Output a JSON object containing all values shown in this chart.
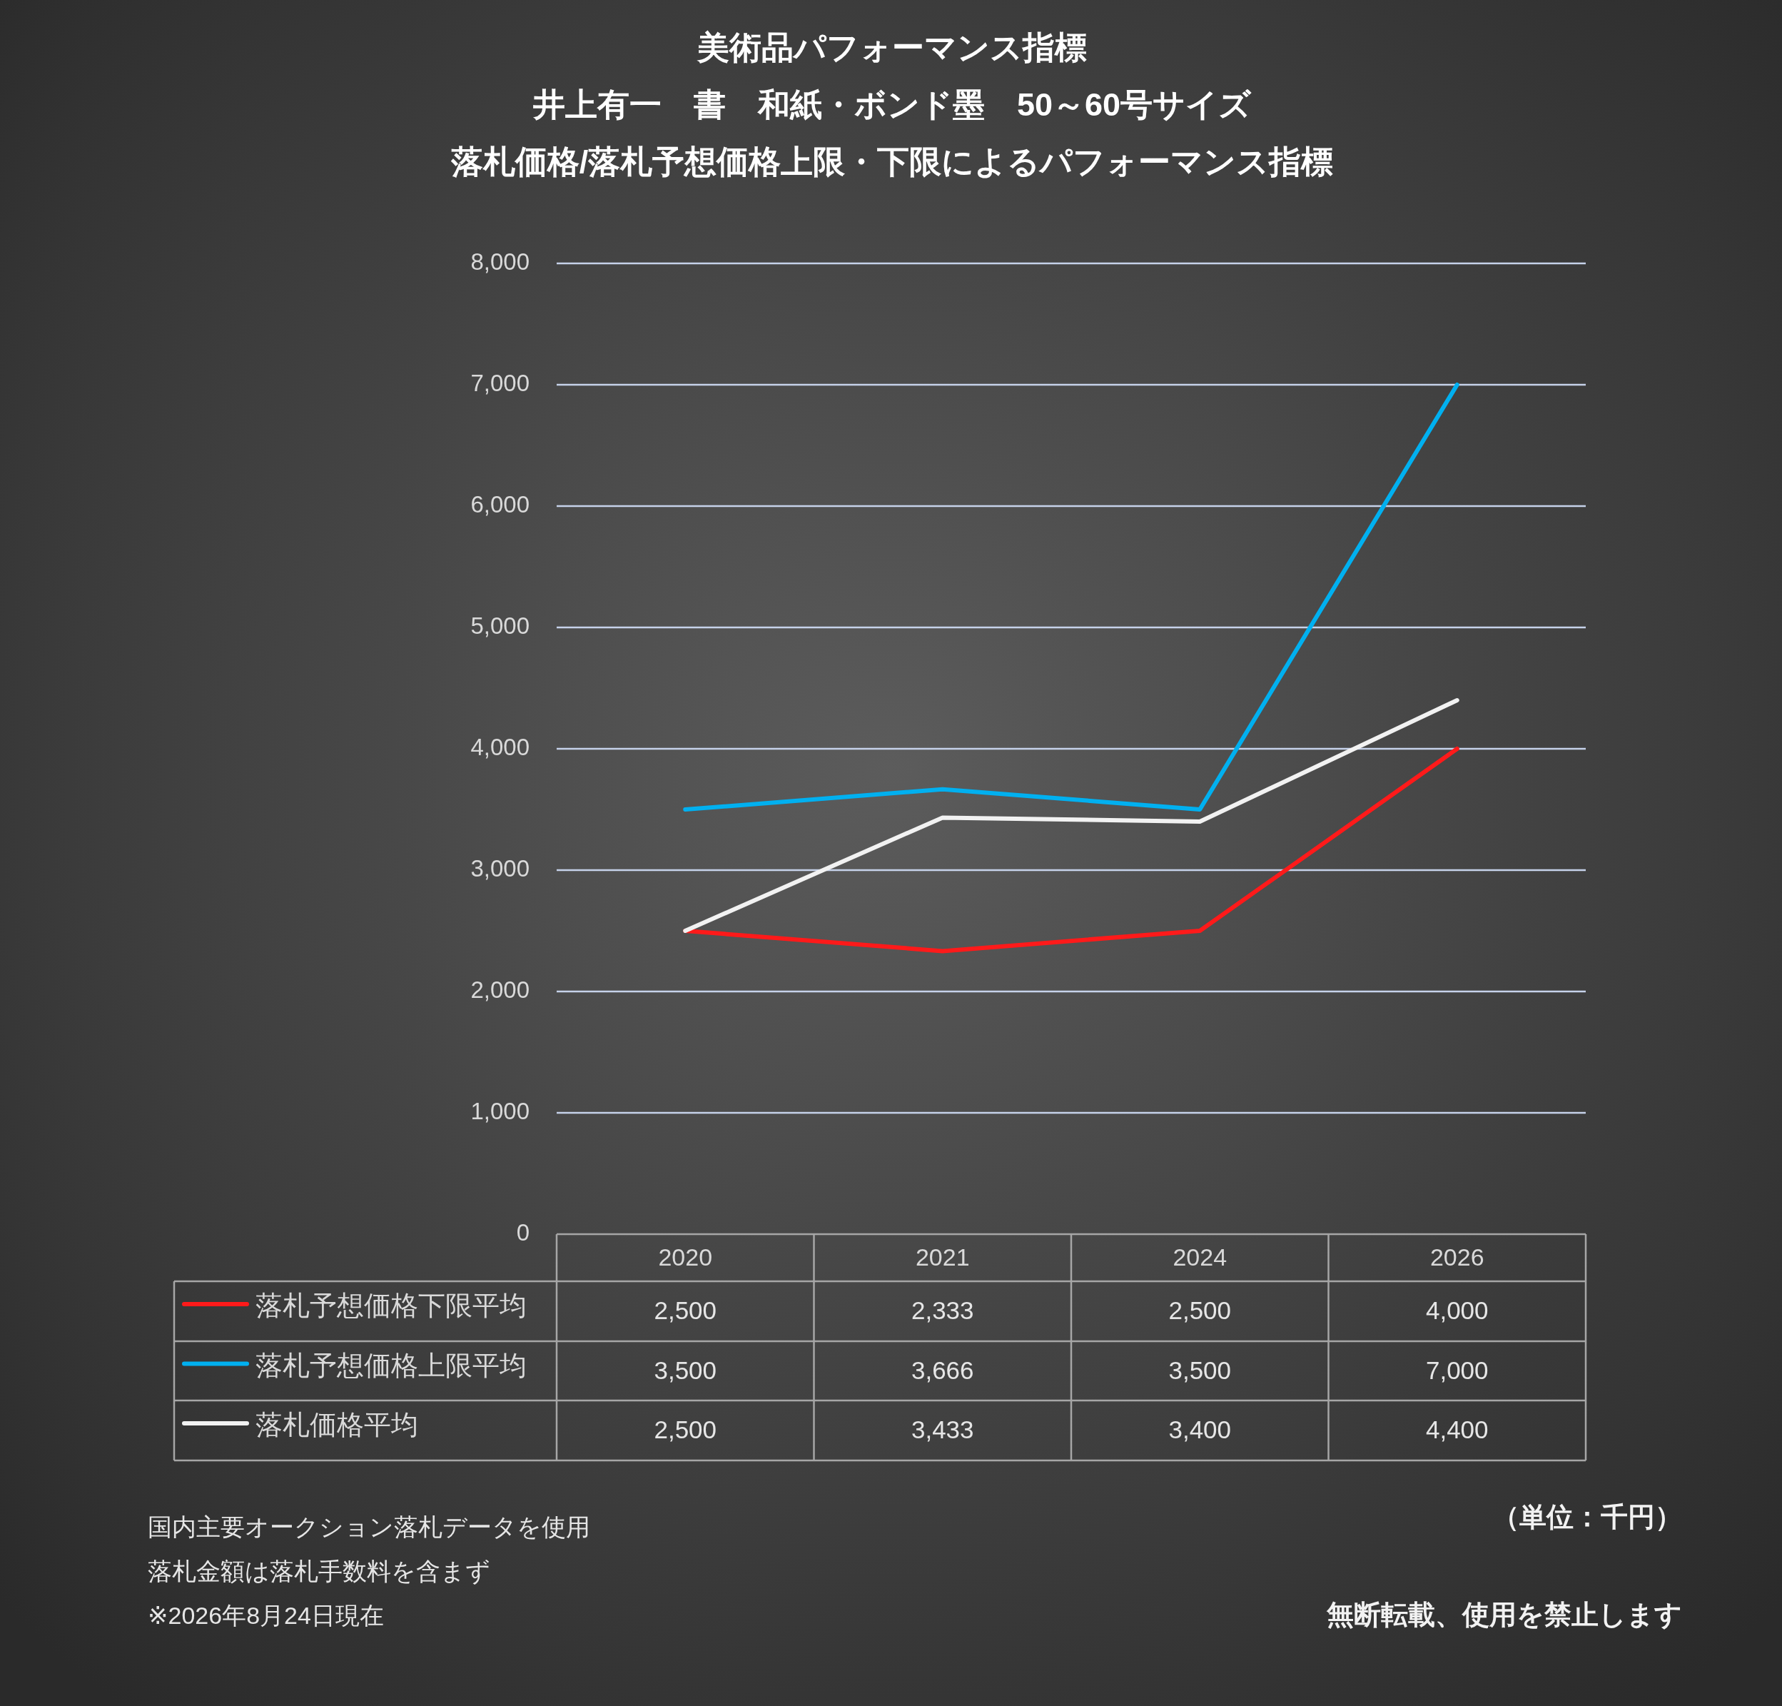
{
  "chart_data": {
    "type": "line",
    "title": "美術品パフォーマンス指標",
    "subtitle": "井上有一　書　和紙・ボンド墨　50～60号サイズ",
    "categories": [
      "2020",
      "2021",
      "2024",
      "2026"
    ],
    "ylim": [
      0,
      8000
    ],
    "yticks": [
      0,
      {
        "value": 1000,
        "label": "1,000"
      },
      {
        "value": 2000,
        "label": "2,000"
      },
      {
        "value": 3000,
        "label": "3,000"
      },
      {
        "value": 4000,
        "label": "4,000"
      },
      {
        "value": 5000,
        "label": "5,000"
      },
      {
        "value": 6000,
        "label": "6,000"
      },
      {
        "value": 7000,
        "label": "7,000"
      },
      {
        "value": 8000,
        "label": "8,000"
      }
    ],
    "grid": "y",
    "legend": "bottom",
    "series": [
      {
        "name": "落札予想価格下限平均",
        "color": "#ff1a1a",
        "values": [
          2500,
          2333,
          2500,
          4000
        ],
        "value_labels": [
          "2,500",
          "2,333",
          "2,500",
          "4,000"
        ]
      },
      {
        "name": "落札予想価格上限平均",
        "color": "#00b0f0",
        "values": [
          3500,
          3666,
          3500,
          7000
        ],
        "value_labels": [
          "3,500",
          "3,666",
          "3,500",
          "7,000"
        ]
      },
      {
        "name": "落札価格平均",
        "color": "#f2f2f2",
        "values": [
          2500,
          3433,
          3400,
          4400
        ],
        "value_labels": [
          "2,500",
          "3,433",
          "3,400",
          "4,400"
        ]
      }
    ],
    "annotations": [
      "落札価格/落札予想価格上限・下限によるパフォーマンス指標",
      "国内主要オークション落札データを使用",
      "落札金額は落札手数料を含まず",
      "※2026年8月24日現在",
      "（単位：千円）",
      "無断転載、使用を禁止します"
    ]
  }
}
